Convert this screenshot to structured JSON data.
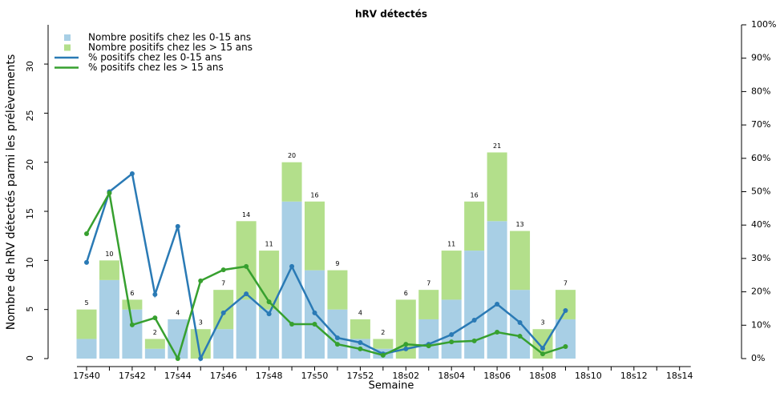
{
  "chart_data": {
    "type": "bar-line",
    "title": "hRV détectés",
    "xlabel": "Semaine",
    "ylabel": "Nombre de hRV détectés parmi les prélèvements",
    "categories": [
      "17s40",
      null,
      "17s42",
      null,
      "17s44",
      null,
      "17s46",
      null,
      "17s48",
      null,
      "17s50",
      null,
      "17s52",
      null,
      "18s02",
      null,
      "18s04",
      null,
      "18s06",
      null,
      "18s08",
      null,
      "18s10",
      null,
      "18s12",
      null,
      "18s14"
    ],
    "ylim": [
      0,
      34
    ],
    "yticks": [
      0,
      5,
      10,
      15,
      20,
      25,
      30
    ],
    "y2lim": [
      0,
      100
    ],
    "y2ticks": [
      {
        "value": 0,
        "label": "0%"
      },
      {
        "value": 10,
        "label": "10%"
      },
      {
        "value": 20,
        "label": "20%"
      },
      {
        "value": 30,
        "label": "30%"
      },
      {
        "value": 40,
        "label": "40%"
      },
      {
        "value": 50,
        "label": "50%"
      },
      {
        "value": 60,
        "label": "60%"
      },
      {
        "value": 70,
        "label": "70%"
      },
      {
        "value": 80,
        "label": "80%"
      },
      {
        "value": 90,
        "label": "90%"
      },
      {
        "value": 100,
        "label": "100%"
      }
    ],
    "series": [
      {
        "name": "Nombre positifs chez les 0-15 ans",
        "kind": "bar",
        "color": "#a8cfe5",
        "values": [
          2,
          8,
          5,
          1,
          4,
          0,
          3,
          6,
          5,
          16,
          9,
          5,
          2,
          1,
          0,
          4,
          6,
          11,
          14,
          7,
          0,
          4,
          null,
          null,
          null,
          null,
          null
        ]
      },
      {
        "name": "Nombre positifs chez les > 15 ans",
        "kind": "bar",
        "color": "#b3df8b",
        "values": [
          3,
          2,
          1,
          1,
          0,
          3,
          4,
          8,
          6,
          4,
          7,
          4,
          2,
          1,
          6,
          3,
          5,
          5,
          7,
          6,
          3,
          3,
          null,
          null,
          null,
          null,
          null
        ]
      },
      {
        "name": "% positifs chez les 0-15 ans",
        "kind": "line",
        "axis": "y2",
        "color": "#2a7ab5",
        "values": [
          28.8,
          50,
          55.4,
          19.2,
          39.6,
          0,
          13.7,
          19.4,
          13.4,
          27.6,
          13.7,
          6.2,
          4.8,
          1.4,
          2.9,
          4.3,
          7.2,
          11.5,
          16.3,
          10.8,
          3.1,
          14.4,
          null,
          null,
          null,
          null,
          null
        ]
      },
      {
        "name": "% positifs chez les > 15 ans",
        "kind": "line",
        "axis": "y2",
        "color": "#37a02f",
        "values": [
          37.4,
          49.6,
          10.1,
          12.2,
          0,
          23.3,
          26.6,
          27.6,
          17,
          10.3,
          10.3,
          4.3,
          2.9,
          1,
          4.3,
          3.8,
          5,
          5.3,
          7.9,
          6.7,
          1.4,
          3.6,
          null,
          null,
          null,
          null,
          null
        ]
      }
    ],
    "totals": [
      5,
      10,
      6,
      2,
      4,
      3,
      7,
      14,
      11,
      20,
      16,
      9,
      4,
      2,
      6,
      7,
      11,
      16,
      21,
      13,
      3,
      7,
      null,
      null,
      null,
      null,
      null
    ]
  }
}
